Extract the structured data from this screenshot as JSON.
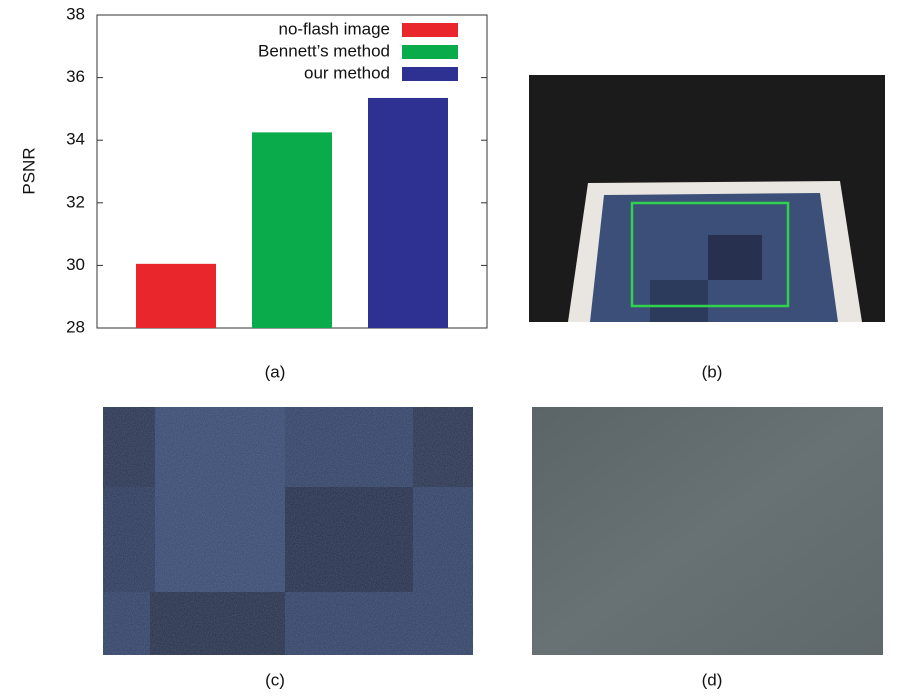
{
  "chart_data": {
    "type": "bar",
    "y_label": "PSNR",
    "series": [
      {
        "name": "no-flash image",
        "color": "#e8262b",
        "values": [
          30.05
        ]
      },
      {
        "name": "Bennett’s method",
        "color": "#0aab4b",
        "values": [
          34.25
        ]
      },
      {
        "name": "our method",
        "color": "#2e3192",
        "values": [
          35.35
        ]
      }
    ],
    "ylim": [
      28,
      38
    ],
    "yticks": [
      28,
      30,
      32,
      34,
      36,
      38
    ],
    "legend": "top-right"
  },
  "captions": [
    "(a)",
    "(b)",
    "(c)",
    "(d)"
  ]
}
